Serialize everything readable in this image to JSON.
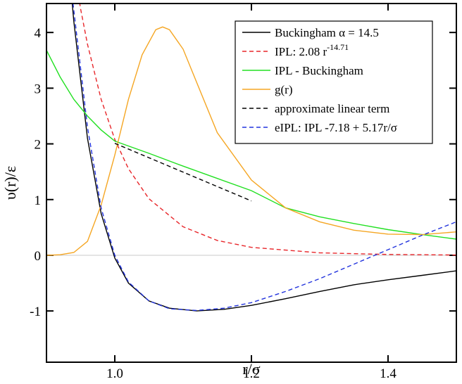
{
  "chart_data": {
    "type": "line",
    "x_label": "r/σ",
    "y_label": "υ(r)/ε",
    "xlim": [
      0.9,
      1.5
    ],
    "ylim": [
      -1.92,
      4.52
    ],
    "xticks": [
      {
        "value": 1,
        "label": "1.0"
      },
      {
        "value": 1.2,
        "label": "1.2"
      },
      {
        "value": 1.4,
        "label": "1.4"
      }
    ],
    "yticks": [
      -1,
      0,
      1,
      2,
      3,
      4
    ],
    "reference_line": 0,
    "legend": "upper right",
    "series": [
      {
        "name": "Buckingham α = 14.5",
        "color": "#000000",
        "dash": false,
        "x": [
          0.93,
          0.94,
          0.96,
          0.98,
          1.0,
          1.02,
          1.05,
          1.08,
          1.12,
          1.16,
          1.2,
          1.25,
          1.3,
          1.35,
          1.4,
          1.45,
          1.5
        ],
        "values": [
          5.6,
          4.2,
          2.1,
          0.75,
          -0.05,
          -0.5,
          -0.82,
          -0.95,
          -1.0,
          -0.97,
          -0.9,
          -0.78,
          -0.65,
          -0.53,
          -0.44,
          -0.36,
          -0.28
        ]
      },
      {
        "name": "IPL: 2.08 r",
        "name_superscript": "-14.71",
        "color": "#e8262a",
        "dash": true,
        "x": [
          0.94,
          0.95,
          0.96,
          0.98,
          1.0,
          1.02,
          1.05,
          1.1,
          1.15,
          1.2,
          1.3,
          1.4,
          1.5
        ],
        "values": [
          5.17,
          4.42,
          3.79,
          2.8,
          2.08,
          1.554,
          1.015,
          0.512,
          0.266,
          0.142,
          0.044,
          0.015,
          0.005
        ]
      },
      {
        "name": "IPL - Buckingham",
        "color": "#22e022",
        "dash": false,
        "x": [
          0.9,
          0.92,
          0.94,
          0.96,
          0.98,
          1.0,
          1.05,
          1.1,
          1.15,
          1.2,
          1.25,
          1.3,
          1.35,
          1.4,
          1.45,
          1.5
        ],
        "values": [
          3.68,
          3.2,
          2.8,
          2.5,
          2.25,
          2.05,
          1.83,
          1.6,
          1.38,
          1.16,
          0.85,
          0.69,
          0.57,
          0.46,
          0.37,
          0.29
        ]
      },
      {
        "name": "g(r)",
        "color": "#f5a623",
        "dash": false,
        "x": [
          0.9,
          0.92,
          0.94,
          0.96,
          0.98,
          1.0,
          1.02,
          1.04,
          1.06,
          1.07,
          1.08,
          1.1,
          1.12,
          1.15,
          1.2,
          1.25,
          1.3,
          1.35,
          1.4,
          1.45,
          1.5
        ],
        "values": [
          0,
          0.01,
          0.05,
          0.25,
          0.9,
          1.8,
          2.8,
          3.6,
          4.05,
          4.1,
          4.05,
          3.7,
          3.1,
          2.2,
          1.35,
          0.85,
          0.6,
          0.45,
          0.38,
          0.37,
          0.42
        ]
      },
      {
        "name": "approximate linear term",
        "color": "#000000",
        "dash": true,
        "x": [
          1.0,
          1.2
        ],
        "values": [
          2.01,
          0.976
        ]
      },
      {
        "name": "eIPL: IPL -7.18 + 5.17r/σ",
        "color": "#2233dd",
        "dash": true,
        "x": [
          0.935,
          0.94,
          0.96,
          0.98,
          1.0,
          1.02,
          1.05,
          1.08,
          1.12,
          1.16,
          1.2,
          1.25,
          1.3,
          1.35,
          1.4,
          1.45,
          1.5
        ],
        "values": [
          4.9,
          4.4,
          2.3,
          0.85,
          0.0,
          -0.48,
          -0.82,
          -0.96,
          -0.99,
          -0.95,
          -0.85,
          -0.65,
          -0.42,
          -0.16,
          0.1,
          0.36,
          0.6
        ]
      }
    ]
  }
}
